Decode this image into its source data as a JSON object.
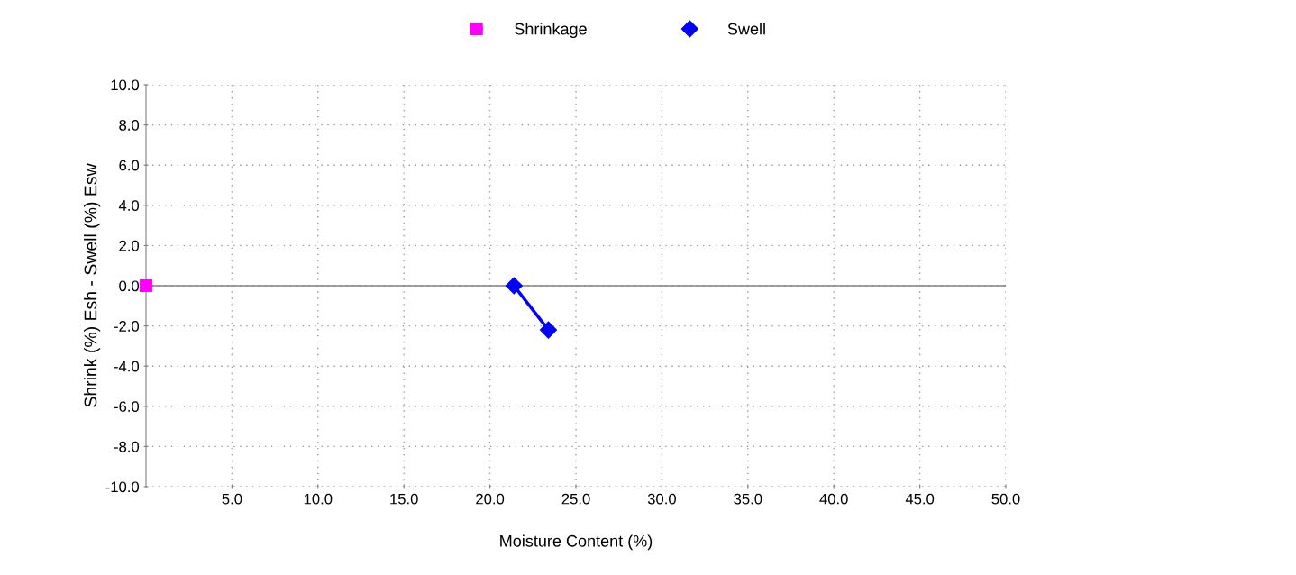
{
  "chart_data": {
    "type": "line",
    "xlabel": "Moisture Content (%)",
    "ylabel": "Shrink (%) Esh - Swell (%) Esw",
    "xlim": [
      0,
      50
    ],
    "ylim": [
      -10,
      10
    ],
    "xticks": [
      {
        "value": 5,
        "label": "5.0"
      },
      {
        "value": 10,
        "label": "10.0"
      },
      {
        "value": 15,
        "label": "15.0"
      },
      {
        "value": 20,
        "label": "20.0"
      },
      {
        "value": 25,
        "label": "25.0"
      },
      {
        "value": 30,
        "label": "30.0"
      },
      {
        "value": 35,
        "label": "35.0"
      },
      {
        "value": 40,
        "label": "40.0"
      },
      {
        "value": 45,
        "label": "45.0"
      },
      {
        "value": 50,
        "label": "50.0"
      }
    ],
    "yticks": [
      {
        "value": -10,
        "label": "-10.0"
      },
      {
        "value": -8,
        "label": "-8.0"
      },
      {
        "value": -6,
        "label": "-6.0"
      },
      {
        "value": -4,
        "label": "-4.0"
      },
      {
        "value": -2,
        "label": "-2.0"
      },
      {
        "value": 0,
        "label": "0.0"
      },
      {
        "value": 2,
        "label": "2.0"
      },
      {
        "value": 4,
        "label": "4.0"
      },
      {
        "value": 6,
        "label": "6.0"
      },
      {
        "value": 8,
        "label": "8.0"
      },
      {
        "value": 10,
        "label": "10.0"
      }
    ],
    "grid": true,
    "legend": "top",
    "line_style": "solid",
    "ref_lines": [
      {
        "axis": "y",
        "value": 0,
        "color": "#808080"
      }
    ],
    "series": [
      {
        "name": "Shrinkage",
        "color": "#ff00ff",
        "marker": "square",
        "x": [
          0
        ],
        "values": [
          0
        ]
      },
      {
        "name": "Swell",
        "color": "#0000ff",
        "marker": "diamond",
        "x": [
          21.4,
          23.4
        ],
        "values": [
          0,
          -2.2
        ]
      }
    ]
  }
}
